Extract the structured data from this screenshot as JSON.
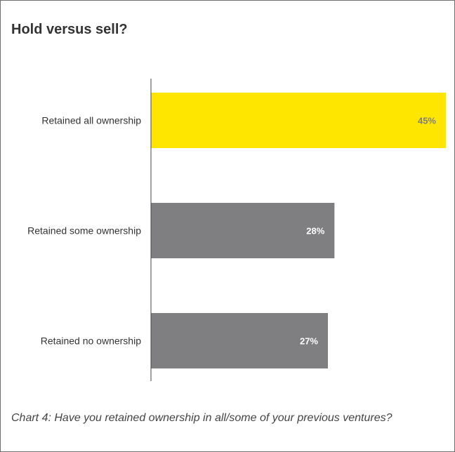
{
  "title": "Hold versus sell?",
  "caption": "Chart 4: Have you retained ownership in all/some of your previous ventures?",
  "colors": {
    "highlight": "#FFE600",
    "default": "#7F7F81",
    "highlight_label": "#7F7F81",
    "default_label": "#FFFFFF",
    "category_label": "#333333",
    "axis": "#444444",
    "border": "#6F6F6F"
  },
  "chart_data": {
    "type": "bar",
    "orientation": "horizontal",
    "categories": [
      "Retained all ownership",
      "Retained some ownership",
      "Retained no ownership"
    ],
    "values": [
      45,
      28,
      27
    ],
    "data_labels": [
      "45%",
      "28%",
      "27%"
    ],
    "highlight_index": 0,
    "xlim": [
      0,
      45
    ],
    "unit": "%",
    "grid": false,
    "legend": "none"
  }
}
